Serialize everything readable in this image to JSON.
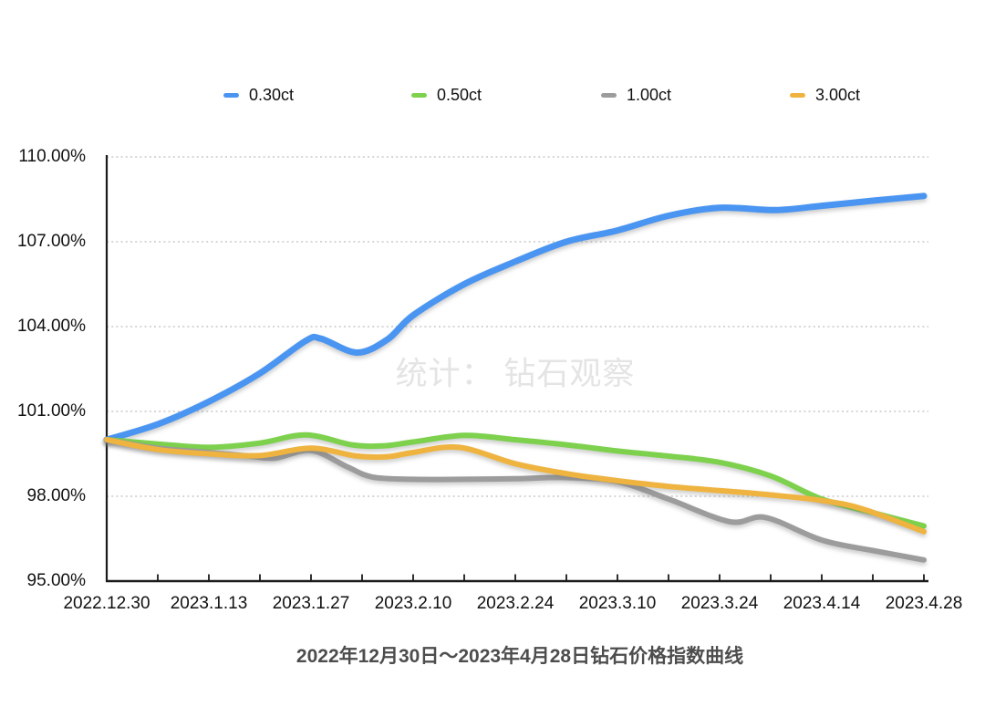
{
  "watermark": "统计： 钻石观察",
  "title": "2022年12月30日～2023年4月28日钻石价格指数曲线",
  "legend": [
    {
      "label": "0.30ct",
      "color": "#4A95F1"
    },
    {
      "label": "0.50ct",
      "color": "#7DD14D"
    },
    {
      "label": "1.00ct",
      "color": "#9C9C9C"
    },
    {
      "label": "3.00ct",
      "color": "#EFB33F"
    }
  ],
  "colors": {
    "series_blue": "#4A95F1",
    "series_green": "#7DD14D",
    "series_gray": "#9C9C9C",
    "series_orange": "#EFB33F",
    "gridline": "#c9c9c9",
    "axis": "#1a1a1a",
    "axis_text": "#111111",
    "title_text": "#4d4d4d",
    "watermark_text": "#e4e4e4"
  },
  "chart_data": {
    "type": "line",
    "title": "2022年12月30日～2023年4月28日钻石价格指数曲线",
    "watermark": "统计： 钻石观察",
    "categories": [
      "2022.12.30",
      "2023.1.13",
      "2023.1.27",
      "2023.2.10",
      "2023.2.24",
      "2023.3.10",
      "2023.3.24",
      "2023.4.14",
      "2023.4.28"
    ],
    "y_tick_labels": [
      "110.00%",
      "107.00%",
      "104.00%",
      "101.00%",
      "98.00%",
      "95.00%"
    ],
    "ylim": [
      95,
      110
    ],
    "y_step": 3,
    "grid": "dotted horizontal",
    "legend_position": "top",
    "unit": "percent",
    "series": [
      {
        "name": "0.30ct",
        "color": "#4A95F1",
        "stroke_width": 7,
        "values": [
          100.0,
          101.4,
          103.5,
          104.4,
          106.3,
          107.4,
          108.2,
          108.3,
          108.6
        ],
        "detail": [
          [
            0,
            100.0
          ],
          [
            0.5,
            100.55
          ],
          [
            1,
            101.35
          ],
          [
            1.5,
            102.35
          ],
          [
            1.95,
            103.5
          ],
          [
            2.1,
            103.57
          ],
          [
            2.45,
            103.08
          ],
          [
            2.75,
            103.55
          ],
          [
            3,
            104.4
          ],
          [
            3.5,
            105.5
          ],
          [
            4,
            106.3
          ],
          [
            4.5,
            107.0
          ],
          [
            5,
            107.4
          ],
          [
            5.5,
            107.92
          ],
          [
            6,
            108.2
          ],
          [
            6.55,
            108.12
          ],
          [
            7,
            108.27
          ],
          [
            7.5,
            108.45
          ],
          [
            8,
            108.62
          ]
        ]
      },
      {
        "name": "0.50ct",
        "color": "#7DD14D",
        "stroke_width": 6,
        "values": [
          100.0,
          99.7,
          100.1,
          99.9,
          100.0,
          99.6,
          99.2,
          97.9,
          96.95
        ],
        "detail": [
          [
            0,
            100.0
          ],
          [
            0.5,
            99.85
          ],
          [
            1,
            99.73
          ],
          [
            1.5,
            99.88
          ],
          [
            1.95,
            100.17
          ],
          [
            2.4,
            99.82
          ],
          [
            2.7,
            99.78
          ],
          [
            3,
            99.92
          ],
          [
            3.5,
            100.15
          ],
          [
            4,
            100.0
          ],
          [
            4.5,
            99.82
          ],
          [
            5,
            99.6
          ],
          [
            5.5,
            99.42
          ],
          [
            6,
            99.2
          ],
          [
            6.5,
            98.72
          ],
          [
            7,
            97.9
          ],
          [
            7.5,
            97.42
          ],
          [
            8,
            96.95
          ]
        ]
      },
      {
        "name": "1.00ct",
        "color": "#9C9C9C",
        "stroke_width": 6,
        "values": [
          100.0,
          99.6,
          99.6,
          98.6,
          98.6,
          98.5,
          97.1,
          96.45,
          95.75
        ],
        "detail": [
          [
            0,
            100.0
          ],
          [
            0.5,
            99.7
          ],
          [
            1,
            99.55
          ],
          [
            1.4,
            99.42
          ],
          [
            1.65,
            99.35
          ],
          [
            2,
            99.62
          ],
          [
            2.35,
            99.05
          ],
          [
            2.6,
            98.68
          ],
          [
            3,
            98.6
          ],
          [
            3.5,
            98.6
          ],
          [
            4,
            98.62
          ],
          [
            4.5,
            98.66
          ],
          [
            5,
            98.52
          ],
          [
            5.5,
            97.9
          ],
          [
            6.1,
            97.1
          ],
          [
            6.45,
            97.25
          ],
          [
            7,
            96.45
          ],
          [
            7.5,
            96.08
          ],
          [
            8,
            95.75
          ]
        ]
      },
      {
        "name": "3.00ct",
        "color": "#EFB33F",
        "stroke_width": 6,
        "values": [
          100.0,
          99.5,
          99.7,
          99.55,
          99.15,
          98.55,
          98.2,
          97.85,
          96.75
        ],
        "detail": [
          [
            0,
            100.0
          ],
          [
            0.5,
            99.65
          ],
          [
            1,
            99.5
          ],
          [
            1.5,
            99.44
          ],
          [
            2,
            99.7
          ],
          [
            2.45,
            99.42
          ],
          [
            2.75,
            99.4
          ],
          [
            3,
            99.55
          ],
          [
            3.45,
            99.73
          ],
          [
            4,
            99.15
          ],
          [
            4.5,
            98.8
          ],
          [
            5,
            98.55
          ],
          [
            5.5,
            98.35
          ],
          [
            6,
            98.2
          ],
          [
            6.5,
            98.05
          ],
          [
            7,
            97.85
          ],
          [
            7.4,
            97.55
          ],
          [
            8,
            96.75
          ]
        ]
      }
    ]
  }
}
